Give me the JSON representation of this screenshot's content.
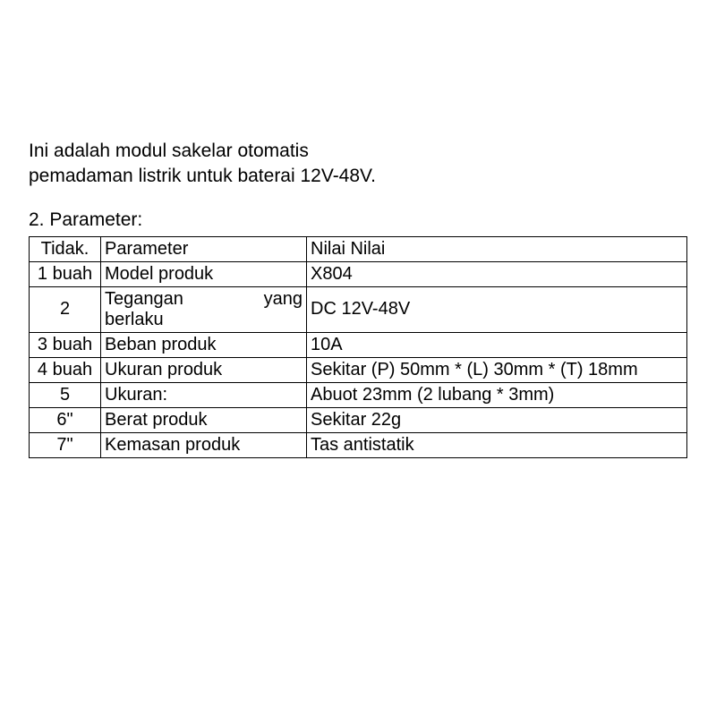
{
  "description": "Ini adalah modul sakelar otomatis pemadaman listrik untuk baterai 12V-48V.",
  "section_title": "2. Parameter:",
  "table": {
    "headers": {
      "no": "Tidak.",
      "param": "Parameter",
      "value": "Nilai Nilai"
    },
    "rows": [
      {
        "no": "1 buah",
        "param": "Model produk",
        "value": "X804",
        "justify": false
      },
      {
        "no": "2",
        "param_left": "Tegangan berlaku",
        "param_right": "yang",
        "value": "DC 12V-48V",
        "justify": true
      },
      {
        "no": "3 buah",
        "param": "Beban produk",
        "value": "10A",
        "justify": false
      },
      {
        "no": "4 buah",
        "param": "Ukuran produk",
        "value": "Sekitar (P) 50mm * (L) 30mm * (T) 18mm",
        "justify": false
      },
      {
        "no": "5",
        "param": "Ukuran:",
        "value": "Abuot 23mm (2 lubang * 3mm)",
        "justify": false
      },
      {
        "no": "6\"",
        "param": "Berat produk",
        "value": "Sekitar 22g",
        "justify": false
      },
      {
        "no": "7\"",
        "param": "Kemasan produk",
        "value": "Tas antistatik",
        "justify": false
      }
    ]
  },
  "styling": {
    "background_color": "#ffffff",
    "text_color": "#000000",
    "border_color": "#000000",
    "font_family": "Arial, Helvetica, sans-serif",
    "description_fontsize": 21,
    "section_title_fontsize": 21,
    "table_fontsize": 20,
    "col_widths": {
      "no": 80,
      "param": 230
    }
  }
}
